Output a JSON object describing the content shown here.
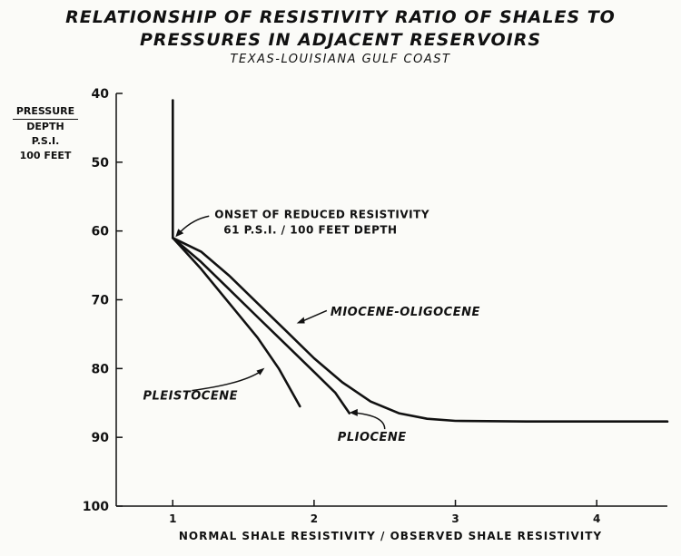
{
  "chart_data": {
    "type": "line",
    "title": "RELATIONSHIP OF RESISTIVITY RATIO OF SHALES TO",
    "title_line2": "PRESSURES IN ADJACENT RESERVOIRS",
    "subtitle": "TEXAS-LOUISIANA GULF COAST",
    "ylabel_numerator": "PRESSURE",
    "ylabel_denominator_lines": [
      "DEPTH",
      "P.S.I."
    ],
    "ylabel_denominator": "100 FEET",
    "xlabel": "NORMAL SHALE RESISTIVITY / OBSERVED SHALE RESISTIVITY",
    "xlim": [
      0.6,
      4.5
    ],
    "ylim": [
      40,
      100
    ],
    "y_inverted": true,
    "xticks": [
      1,
      2,
      3,
      4
    ],
    "yticks": [
      40,
      50,
      60,
      70,
      80,
      90,
      100
    ],
    "grid": false,
    "series": [
      {
        "name": "",
        "x": [
          1.0,
          1.0
        ],
        "y": [
          41,
          61
        ]
      },
      {
        "name": "PLEISTOCENE",
        "x": [
          1.0,
          1.2,
          1.4,
          1.6,
          1.75,
          1.9
        ],
        "y": [
          61,
          65.5,
          70.5,
          75.5,
          80,
          85.5
        ]
      },
      {
        "name": "PLIOCENE",
        "x": [
          1.0,
          1.2,
          1.4,
          1.6,
          1.8,
          2.0,
          2.15,
          2.25
        ],
        "y": [
          61,
          64.5,
          68.5,
          72.5,
          76.5,
          80.5,
          83.5,
          86.5
        ]
      },
      {
        "name": "MIOCENE-OLIGOCENE",
        "x": [
          1.0,
          1.2,
          1.4,
          1.6,
          1.8,
          2.0,
          2.2,
          2.4,
          2.6,
          2.8,
          3.0,
          3.5,
          4.0,
          4.5
        ],
        "y": [
          61,
          63,
          66.5,
          70.5,
          74.5,
          78.5,
          82,
          84.8,
          86.5,
          87.3,
          87.6,
          87.7,
          87.7,
          87.7
        ]
      }
    ],
    "annotations": [
      {
        "text": "ONSET OF REDUCED RESISTIVITY",
        "x": 1.0,
        "y": 61
      },
      {
        "text": "61 P.S.I. / 100 FEET DEPTH",
        "x": 1.0,
        "y": 61
      },
      {
        "text": "MIOCENE-OLIGOCENE",
        "x": 1.9,
        "y": 73
      },
      {
        "text": "PLEISTOCENE",
        "x": 1.65,
        "y": 78
      },
      {
        "text": "PLIOCENE",
        "x": 2.25,
        "y": 86.5
      }
    ]
  }
}
